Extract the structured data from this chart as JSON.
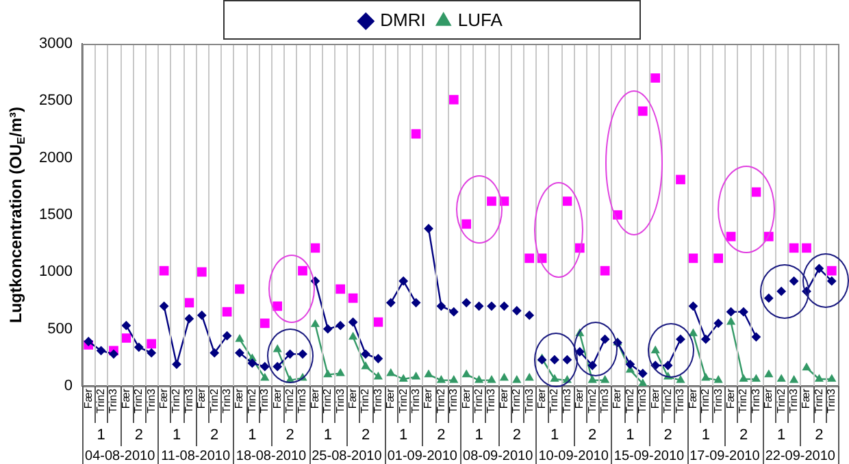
{
  "chart_data": {
    "type": "line",
    "ylabel": "Lugtkoncentration (OU$_{E}$/m³)",
    "categories": [
      "Fær",
      "Trin2",
      "Trin3",
      "Fær",
      "Trin2",
      "Trin3",
      "Fær",
      "Trin2",
      "Trin3",
      "Fær",
      "Trin2",
      "Trin3",
      "Fær",
      "Trin2",
      "Trin3",
      "Fær",
      "Trin2",
      "Trin3",
      "Fær",
      "Trin2",
      "Trin3",
      "Fær",
      "Trin2",
      "Trin3",
      "Fær",
      "Trin2",
      "Trin3",
      "Fær",
      "Trin2",
      "Trin3",
      "Fær",
      "Trin2",
      "Trin3",
      "Fær",
      "Trin2",
      "Trin3",
      "Fær",
      "Trin2",
      "Trin3",
      "Fær",
      "Trin2",
      "Trin3",
      "Fær",
      "Trin2",
      "Trin3",
      "Fær",
      "Trin2",
      "Trin3",
      "Fær",
      "Trin2",
      "Trin3",
      "Fær",
      "Trin2",
      "Trin3",
      "Fær",
      "Trin2",
      "Trin3",
      "Fær",
      "Trin2",
      "Trin3"
    ],
    "annotations": [
      "1",
      "2",
      "1",
      "2",
      "1",
      "2",
      "1",
      "2",
      "1",
      "2",
      "1",
      "2",
      "1",
      "2",
      "1",
      "2",
      "1",
      "2",
      "1",
      "2",
      "04-08-2010",
      "11-08-2010",
      "18-08-2010",
      "25-08-2010",
      "01-09-2010",
      "08-09-2010",
      "10-09-2010",
      "15-09-2010",
      "17-09-2010",
      "22-09-2010"
    ],
    "series": [
      {
        "name": "DMRI",
        "marker": "diamond",
        "color": "#000080",
        "values": [
          390,
          310,
          280,
          530,
          340,
          290,
          700,
          190,
          590,
          620,
          290,
          440,
          290,
          200,
          170,
          170,
          280,
          280,
          920,
          500,
          530,
          560,
          280,
          240,
          730,
          920,
          730,
          1380,
          700,
          650,
          null,
          null,
          null,
          null,
          null,
          null,
          null,
          null,
          null,
          300,
          180,
          410,
          380,
          190,
          110,
          180,
          180,
          410,
          700,
          410,
          550,
          650,
          650,
          430,
          null,
          null,
          null,
          830,
          1030,
          920
        ]
      },
      {
        "type": "scatter",
        "marker": "diamond",
        "color": "#000080",
        "values": [
          null,
          null,
          null,
          null,
          null,
          null,
          null,
          null,
          null,
          null,
          null,
          null,
          null,
          null,
          null,
          null,
          null,
          null,
          null,
          null,
          null,
          null,
          null,
          null,
          null,
          null,
          null,
          null,
          null,
          null,
          730,
          700,
          700,
          700,
          660,
          620,
          230,
          230,
          230,
          null,
          null,
          null,
          null,
          null,
          null,
          null,
          null,
          null,
          null,
          null,
          null,
          null,
          null,
          null,
          770,
          830,
          920,
          null,
          null,
          null
        ]
      },
      {
        "type": "scatter",
        "marker": "square",
        "color": "#ff00ff",
        "values": [
          360,
          null,
          310,
          420,
          null,
          370,
          1010,
          null,
          730,
          1000,
          null,
          650,
          850,
          null,
          550,
          700,
          null,
          1010,
          1210,
          null,
          850,
          770,
          null,
          560,
          null,
          null,
          2210,
          null,
          null,
          2510,
          1420,
          null,
          1620,
          1620,
          null,
          1120,
          1120,
          null,
          1620,
          1210,
          null,
          1010,
          1500,
          null,
          2410,
          2700,
          null,
          1810,
          1120,
          null,
          1120,
          1310,
          null,
          1700,
          1310,
          null,
          1210,
          1210,
          null,
          1010
        ]
      },
      {
        "name": "LUFA",
        "marker": "triangle",
        "color": "#339966",
        "values": [
          null,
          null,
          null,
          null,
          null,
          null,
          null,
          null,
          null,
          null,
          null,
          null,
          410,
          240,
          70,
          320,
          50,
          70,
          540,
          100,
          110,
          430,
          170,
          80,
          110,
          60,
          80,
          100,
          50,
          50,
          100,
          50,
          50,
          null,
          null,
          null,
          240,
          60,
          50,
          460,
          50,
          50,
          380,
          140,
          20,
          310,
          80,
          50,
          460,
          70,
          50,
          560,
          60,
          60,
          null,
          null,
          null,
          160,
          60,
          60
        ]
      },
      {
        "type": "scatter",
        "marker": "triangle",
        "color": "#339966",
        "values": [
          null,
          null,
          null,
          null,
          null,
          null,
          null,
          null,
          null,
          null,
          null,
          null,
          null,
          null,
          null,
          null,
          null,
          null,
          null,
          null,
          null,
          null,
          null,
          null,
          null,
          null,
          null,
          null,
          null,
          null,
          null,
          null,
          null,
          70,
          50,
          70,
          null,
          null,
          null,
          null,
          null,
          null,
          null,
          null,
          null,
          null,
          null,
          null,
          null,
          null,
          null,
          null,
          null,
          null,
          100,
          60,
          50,
          null,
          null,
          null
        ]
      }
    ],
    "ylim": [
      0,
      3000
    ],
    "yticks": [
      0,
      500,
      1000,
      1500,
      2000,
      2500,
      3000
    ],
    "grid": "x",
    "legend": "top"
  }
}
